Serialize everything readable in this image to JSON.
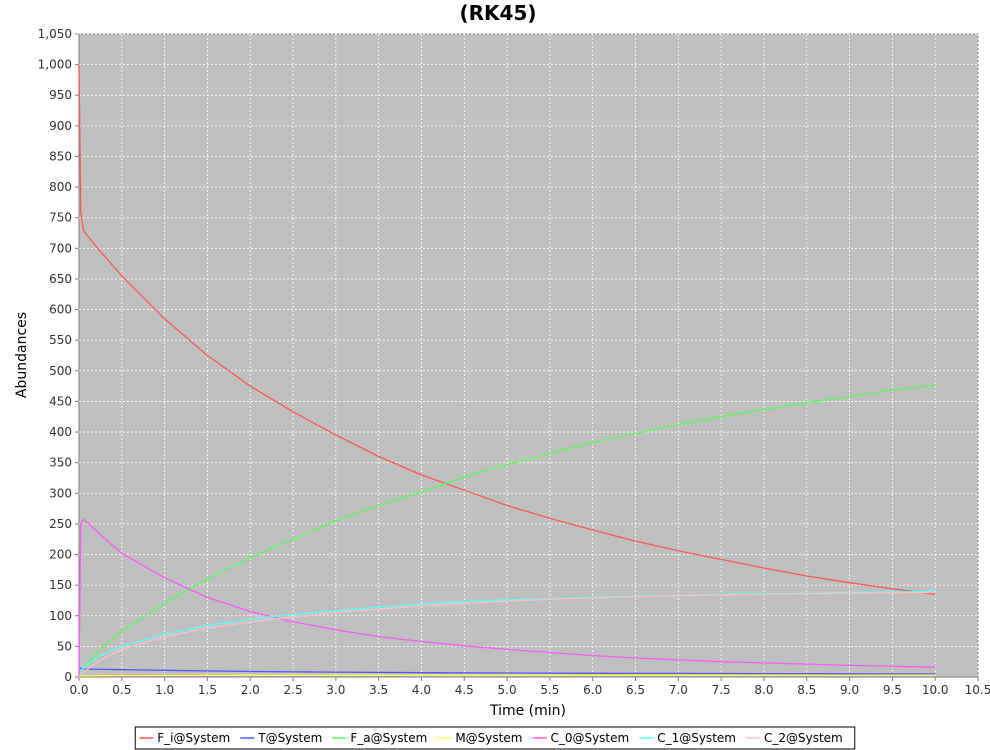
{
  "chart_data": {
    "type": "line",
    "title": "(RK45)",
    "xlabel": "Time (min)",
    "ylabel": "Abundances",
    "xlim": [
      0,
      10.5
    ],
    "ylim": [
      0,
      1050
    ],
    "xticks": [
      0,
      0.5,
      1,
      1.5,
      2,
      2.5,
      3,
      3.5,
      4,
      4.5,
      5,
      5.5,
      6,
      6.5,
      7,
      7.5,
      8,
      8.5,
      9,
      9.5,
      10,
      10.5
    ],
    "xtick_labels": [
      "0.0",
      "0.5",
      "1.0",
      "1.5",
      "2.0",
      "2.5",
      "3.0",
      "3.5",
      "4.0",
      "4.5",
      "5.0",
      "5.5",
      "6.0",
      "6.5",
      "7.0",
      "7.5",
      "8.0",
      "8.5",
      "9.0",
      "9.5",
      "10.0",
      "10.5"
    ],
    "yticks": [
      0,
      50,
      100,
      150,
      200,
      250,
      300,
      350,
      400,
      450,
      500,
      550,
      600,
      650,
      700,
      750,
      800,
      850,
      900,
      950,
      1000,
      1050
    ],
    "ytick_labels": [
      "0",
      "50",
      "100",
      "150",
      "200",
      "250",
      "300",
      "350",
      "400",
      "450",
      "500",
      "550",
      "600",
      "650",
      "700",
      "750",
      "800",
      "850",
      "900",
      "950",
      "1,000",
      "1,050"
    ],
    "grid": true,
    "legend_position": "bottom",
    "background": "#c0c0c0",
    "series": [
      {
        "name": "F_i@System",
        "color": "#ff5555",
        "x": [
          0,
          0.01,
          0.02,
          0.05,
          0.1,
          0.25,
          0.5,
          1.0,
          1.5,
          2.0,
          2.5,
          3.0,
          3.5,
          4.0,
          4.5,
          5.0,
          5.5,
          6.0,
          6.5,
          7.0,
          7.5,
          8.0,
          8.5,
          9.0,
          9.5,
          10.0
        ],
        "y": [
          1000,
          880,
          760,
          730,
          720,
          695,
          655,
          585,
          525,
          475,
          433,
          395,
          360,
          330,
          305,
          280,
          259,
          240,
          222,
          206,
          192,
          178,
          165,
          154,
          144,
          135
        ]
      },
      {
        "name": "T@System",
        "color": "#5555ff",
        "x": [
          0,
          0.02,
          0.05,
          0.5,
          1,
          2,
          3,
          4,
          5,
          6,
          7,
          8,
          9,
          10
        ],
        "y": [
          15,
          14,
          13,
          12,
          11,
          9,
          8,
          7,
          6.5,
          6,
          5.8,
          5.5,
          5.2,
          5
        ]
      },
      {
        "name": "F_a@System",
        "color": "#55ff55",
        "x": [
          0,
          0.05,
          0.25,
          0.5,
          1.0,
          1.5,
          2.0,
          2.5,
          3.0,
          3.5,
          4.0,
          4.5,
          5.0,
          5.5,
          6.0,
          6.5,
          7.0,
          7.5,
          8.0,
          8.5,
          9.0,
          9.5,
          10.0
        ],
        "y": [
          0,
          15,
          45,
          75,
          120,
          160,
          195,
          225,
          255,
          280,
          302,
          327,
          347,
          365,
          383,
          398,
          412,
          425,
          437,
          448,
          458,
          468,
          477
        ]
      },
      {
        "name": "M@System",
        "color": "#ffff55",
        "x": [
          0,
          1,
          2,
          3,
          4,
          5,
          6,
          7,
          8,
          9,
          10
        ],
        "y": [
          2,
          2.5,
          3,
          3,
          3,
          3,
          3,
          3,
          3,
          3,
          3
        ]
      },
      {
        "name": "C_0@System",
        "color": "#ff55ff",
        "x": [
          0,
          0.02,
          0.05,
          0.1,
          0.25,
          0.5,
          1.0,
          1.5,
          2.0,
          2.5,
          3.0,
          3.5,
          4.0,
          4.5,
          5.0,
          5.5,
          6.0,
          6.5,
          7.0,
          7.5,
          8.0,
          8.5,
          9.0,
          9.5,
          10.0
        ],
        "y": [
          0,
          250,
          257,
          252,
          232,
          202,
          162,
          130,
          107,
          90,
          77,
          66,
          58,
          51,
          45,
          40,
          35,
          31,
          28,
          25,
          23,
          21,
          19,
          17.5,
          16
        ]
      },
      {
        "name": "C_1@System",
        "color": "#55ffff",
        "x": [
          0,
          0.05,
          0.25,
          0.5,
          1.0,
          1.5,
          2.0,
          2.5,
          3.0,
          3.5,
          4.0,
          4.5,
          5.0,
          5.5,
          6.0,
          6.5,
          7.0,
          7.5,
          8.0,
          8.5,
          9.0,
          9.5,
          10.0
        ],
        "y": [
          0,
          15,
          35,
          50,
          70,
          84,
          94,
          102,
          108,
          114,
          119,
          123,
          126,
          128,
          130,
          132,
          133,
          135,
          136,
          137,
          138,
          139,
          140
        ]
      },
      {
        "name": "C_2@System",
        "color": "#ffc0c0",
        "x": [
          0,
          0.05,
          0.25,
          0.5,
          1.0,
          1.5,
          2.0,
          2.5,
          3.0,
          3.5,
          4.0,
          4.5,
          5.0,
          5.5,
          6.0,
          6.5,
          7.0,
          7.5,
          8.0,
          8.5,
          9.0,
          9.5,
          10.0
        ],
        "y": [
          0,
          8,
          28,
          45,
          66,
          80,
          90,
          98,
          105,
          111,
          116,
          120,
          124,
          127,
          129,
          131,
          133,
          134,
          135,
          136,
          137,
          137.5,
          138
        ]
      }
    ]
  }
}
